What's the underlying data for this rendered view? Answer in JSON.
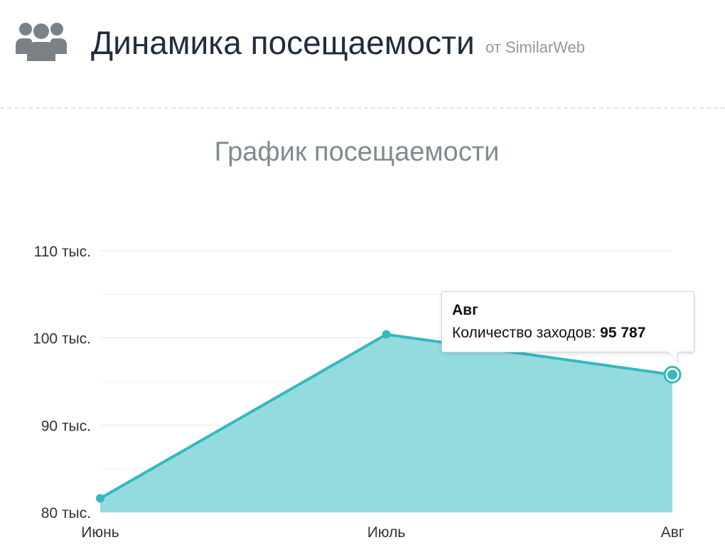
{
  "header": {
    "title": "Динамика посещаемости",
    "subtitle": "от SimilarWeb",
    "icon": "users-icon"
  },
  "colors": {
    "line": "#35b9be",
    "area": "#94dbdf",
    "title": "#1f2d3d",
    "grid": "#e6e6e6"
  },
  "chart_data": {
    "type": "area",
    "title": "График посещаемости",
    "categories": [
      "Июнь",
      "Июль",
      "Авг"
    ],
    "series": [
      {
        "values": [
          81600,
          100400,
          95787
        ]
      }
    ],
    "ylim": [
      80000,
      110000
    ],
    "y_ticks": [
      80000,
      90000,
      100000,
      110000
    ],
    "y_tick_labels": [
      "80 тыс.",
      "90 тыс.",
      "100 тыс.",
      "110 тыс."
    ],
    "grid": true,
    "tooltip": {
      "title": "Авг",
      "label": "Количество заходов:",
      "value": "95 787"
    }
  }
}
